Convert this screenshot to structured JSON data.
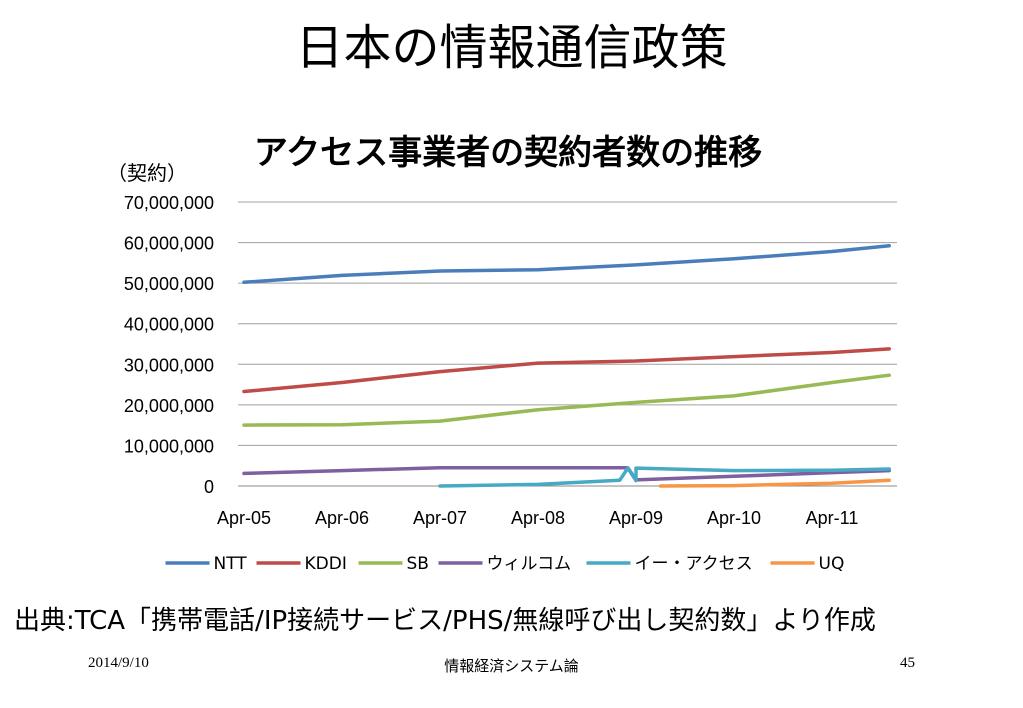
{
  "slide": {
    "title": "日本の情報通信政策",
    "source": "出典:TCA「携帯電話/IP接続サービス/PHS/無線呼び出し契約数」より作成",
    "footer_date": "2014/9/10",
    "footer_center": "情報経済システム論",
    "page_number": "45"
  },
  "chart_data": {
    "type": "line",
    "title": "アクセス事業者の契約者数の推移",
    "ylabel": "（契約）",
    "xlabel": "",
    "ylim": [
      0,
      70000000
    ],
    "ytick_labels": [
      "0",
      "10,000,000",
      "20,000,000",
      "30,000,000",
      "40,000,000",
      "50,000,000",
      "60,000,000",
      "70,000,000"
    ],
    "xtick_labels": [
      "Apr-05",
      "Apr-06",
      "Apr-07",
      "Apr-08",
      "Apr-09",
      "Apr-10",
      "Apr-11"
    ],
    "x_unit": "month",
    "x_start": "Apr-05",
    "grid": true,
    "legend_position": "bottom",
    "series": [
      {
        "name": "NTT",
        "color": "#4a7ebb",
        "points": [
          [
            "Apr-05",
            50200000
          ],
          [
            "Apr-06",
            51900000
          ],
          [
            "Apr-07",
            53000000
          ],
          [
            "Apr-08",
            53300000
          ],
          [
            "Apr-09",
            54500000
          ],
          [
            "Apr-10",
            56000000
          ],
          [
            "Apr-11",
            57800000
          ],
          [
            "Nov-11",
            59200000
          ]
        ]
      },
      {
        "name": "KDDI",
        "color": "#be4b48",
        "points": [
          [
            "Apr-05",
            23300000
          ],
          [
            "Apr-06",
            25500000
          ],
          [
            "Apr-07",
            28200000
          ],
          [
            "Apr-08",
            30300000
          ],
          [
            "Apr-09",
            30800000
          ],
          [
            "Apr-10",
            31900000
          ],
          [
            "Apr-11",
            32900000
          ],
          [
            "Nov-11",
            33800000
          ]
        ]
      },
      {
        "name": "SB",
        "color": "#98b954",
        "points": [
          [
            "Apr-05",
            15000000
          ],
          [
            "Apr-06",
            15100000
          ],
          [
            "Apr-07",
            16000000
          ],
          [
            "Apr-08",
            18800000
          ],
          [
            "Apr-09",
            20600000
          ],
          [
            "Apr-10",
            22200000
          ],
          [
            "Apr-11",
            25500000
          ],
          [
            "Nov-11",
            27300000
          ]
        ]
      },
      {
        "name": "ウィルコム",
        "color": "#7d60a0",
        "points": [
          [
            "Apr-05",
            3100000
          ],
          [
            "Apr-06",
            3800000
          ],
          [
            "Apr-07",
            4500000
          ],
          [
            "Apr-08",
            4500000
          ],
          [
            "Mar-09",
            4500000
          ],
          [
            "Apr-09",
            1500000
          ],
          [
            "Apr-10",
            2400000
          ],
          [
            "Apr-11",
            3300000
          ],
          [
            "Nov-11",
            3800000
          ]
        ]
      },
      {
        "name": "イー・アクセス",
        "color": "#46aac5",
        "points": [
          [
            "Apr-07",
            0
          ],
          [
            "Apr-08",
            400000
          ],
          [
            "Apr-09",
            1300000
          ],
          [
            "Feb-09",
            1400000
          ],
          [
            "Mar-09",
            4400000
          ],
          [
            "Apr-09",
            4400000
          ],
          [
            "Apr-10",
            3800000
          ],
          [
            "Apr-11",
            3900000
          ],
          [
            "Nov-11",
            4200000
          ]
        ]
      },
      {
        "name": "UQ",
        "color": "#f79646",
        "points": [
          [
            "Jul-09",
            0
          ],
          [
            "Apr-10",
            100000
          ],
          [
            "Apr-11",
            700000
          ],
          [
            "Nov-11",
            1400000
          ]
        ]
      }
    ]
  }
}
